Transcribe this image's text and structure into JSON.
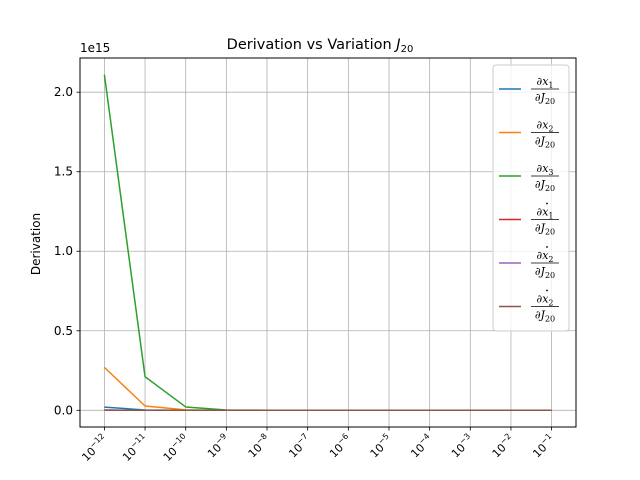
{
  "chart_data": {
    "type": "line",
    "title_main": "Derivation vs Variation",
    "title_var": "J",
    "title_sub": "20",
    "ylabel": "Derivation",
    "offset_label": "1e15",
    "y_scale_factor": 1000000000000000.0,
    "ylim": [
      -0.105,
      2.215
    ],
    "yticks": [
      0.0,
      0.5,
      1.0,
      1.5,
      2.0
    ],
    "ytick_labels": [
      "0.0",
      "0.5",
      "1.0",
      "1.5",
      "2.0"
    ],
    "x_scale": "log",
    "x_exponents": [
      -12,
      -11,
      -10,
      -9,
      -8,
      -7,
      -6,
      -5,
      -4,
      -3,
      -2,
      -1
    ],
    "x_tick_base": "10",
    "grid": true,
    "legend_position": "top-right",
    "series": [
      {
        "name": "∂x1/∂J20",
        "num": "∂x",
        "num_sub": "1",
        "dot": false,
        "color": "#1f77b4",
        "values": [
          0.02,
          0.002,
          0.0002,
          2e-05,
          0,
          0,
          0,
          0,
          0,
          0,
          0,
          0
        ]
      },
      {
        "name": "∂x2/∂J20",
        "num": "∂x",
        "num_sub": "2",
        "dot": false,
        "color": "#ff7f0e",
        "values": [
          0.27,
          0.027,
          0.0027,
          0.00027,
          0,
          0,
          0,
          0,
          0,
          0,
          0,
          0
        ]
      },
      {
        "name": "∂x3/∂J20",
        "num": "∂x",
        "num_sub": "3",
        "dot": false,
        "color": "#2ca02c",
        "values": [
          2.11,
          0.211,
          0.0211,
          0.00211,
          0.0002,
          0,
          0,
          0,
          0,
          0,
          0,
          0
        ]
      },
      {
        "name": "∂ẋ1/∂J20",
        "num": "∂x",
        "num_sub": "1",
        "dot": true,
        "color": "#d62728",
        "values": [
          0.001,
          0.0001,
          0,
          0,
          0,
          0,
          0,
          0,
          0,
          0,
          0,
          0
        ]
      },
      {
        "name": "∂ẋ2/∂J20",
        "num": "∂x",
        "num_sub": "2",
        "dot": true,
        "color": "#9467bd",
        "values": [
          0.001,
          0.0001,
          0,
          0,
          0,
          0,
          0,
          0,
          0,
          0,
          0,
          0
        ]
      },
      {
        "name": "∂ẋ2/∂J20",
        "num": "∂x",
        "num_sub": "2",
        "dot": true,
        "color": "#8c564b",
        "values": [
          0.001,
          0.0001,
          0,
          0,
          0,
          0,
          0,
          0,
          0,
          0,
          0,
          0
        ]
      }
    ],
    "legend_denominator": "∂J",
    "legend_denominator_sub": "20"
  }
}
